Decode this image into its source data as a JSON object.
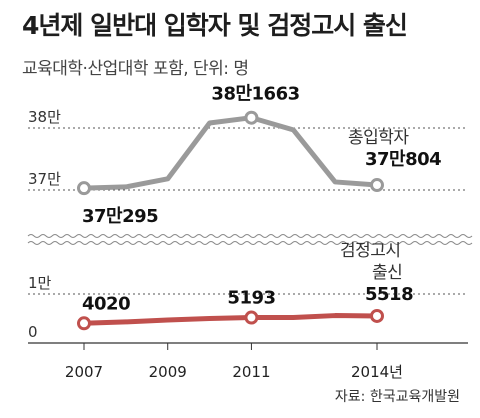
{
  "title": "4년제 일반대 입학자 및 검정고시 출신",
  "subtitle": "교육대학·산업대학 포함, 단위: 명",
  "source": "자료: 한국교육개발원",
  "chart_data": {
    "type": "line",
    "title": "4년제 일반대 입학자 및 검정고시 출신",
    "subtitle": "교육대학·산업대학 포함, 단위: 명",
    "broken_axis": true,
    "x": [
      2007,
      2008,
      2009,
      2010,
      2011,
      2012,
      2013,
      2014
    ],
    "x_ticks": [
      "2007",
      "2009",
      "2011",
      "2014년"
    ],
    "x_tick_positions": [
      2007,
      2009,
      2011,
      2014
    ],
    "panels": [
      {
        "series_name": "총입학자",
        "color": "#9a9a9a",
        "y_ticks": [
          {
            "value": 380000,
            "label": "38만"
          },
          {
            "value": 370000,
            "label": "37만"
          }
        ],
        "ylim": [
          367000,
          383000
        ],
        "values": [
          370295,
          370500,
          371800,
          380800,
          381663,
          379700,
          371300,
          370804
        ],
        "annotations": [
          {
            "x": 2007,
            "text": "37만295"
          },
          {
            "x": 2011,
            "text": "38만1663"
          },
          {
            "x": 2014,
            "text": "37만804"
          }
        ]
      },
      {
        "series_name": "검정고시 출신",
        "color": "#c0504d",
        "y_ticks": [
          {
            "value": 10000,
            "label": "1만"
          },
          {
            "value": 0,
            "label": "0"
          }
        ],
        "ylim": [
          0,
          10000
        ],
        "values": [
          4020,
          4300,
          4700,
          5000,
          5193,
          5200,
          5600,
          5518
        ],
        "annotations": [
          {
            "x": 2007,
            "text": "4020"
          },
          {
            "x": 2011,
            "text": "5193"
          },
          {
            "x": 2014,
            "text": "5518"
          }
        ]
      }
    ],
    "grid": true
  }
}
